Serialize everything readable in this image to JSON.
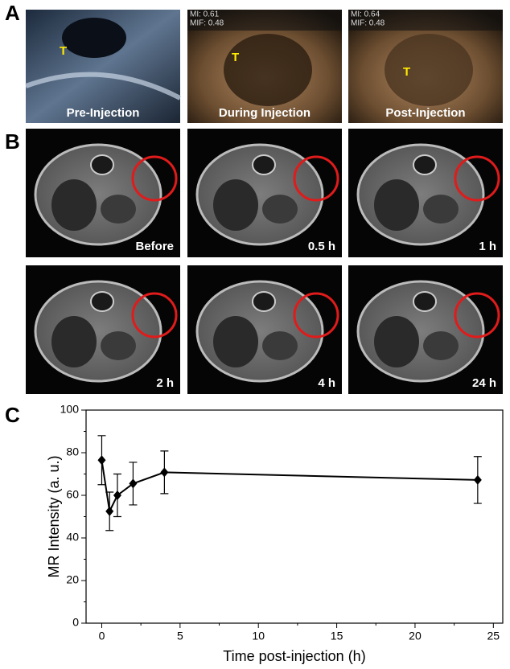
{
  "panels": {
    "a": {
      "label": "A",
      "images": [
        {
          "caption": "Pre-Injection",
          "marker": "T"
        },
        {
          "caption": "During Injection",
          "marker": "T",
          "overlay": [
            "MI: 0.61",
            "MIF: 0.48"
          ]
        },
        {
          "caption": "Post-Injection",
          "marker": "T",
          "overlay": [
            "MI: 0.64",
            "MIF: 0.48"
          ]
        }
      ]
    },
    "b": {
      "label": "B",
      "images": [
        {
          "caption": "Before"
        },
        {
          "caption": "0.5 h"
        },
        {
          "caption": "1 h"
        },
        {
          "caption": "2 h"
        },
        {
          "caption": "4 h"
        },
        {
          "caption": "24 h"
        }
      ]
    },
    "c": {
      "label": "C"
    }
  },
  "chart_data": {
    "type": "line",
    "x_label": "Time post-injection (h)",
    "y_label": "MR Intensity (a. u.)",
    "x": [
      0,
      0.5,
      1,
      2,
      4,
      24
    ],
    "series": [
      {
        "color": "#000000",
        "values": [
          76.5,
          52.5,
          60,
          65.5,
          70.8,
          67.2
        ],
        "errors": [
          11.5,
          9,
          10,
          10,
          10,
          11
        ]
      }
    ],
    "xlim": [
      -1,
      25.6
    ],
    "ylim": [
      0,
      100
    ],
    "xticks": [
      0,
      5,
      10,
      15,
      20,
      25
    ],
    "yticks": [
      0,
      20,
      40,
      60,
      80,
      100
    ],
    "xminorticks": [
      2.5,
      7.5,
      12.5,
      17.5,
      22.5
    ],
    "yminorticks": [
      10,
      30,
      50,
      70,
      90
    ]
  }
}
